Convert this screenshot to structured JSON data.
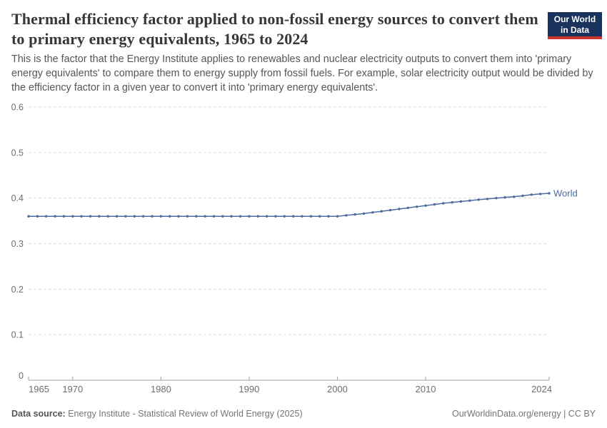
{
  "header": {
    "title": "Thermal efficiency factor applied to non-fossil energy sources to convert them to primary energy equivalents, 1965 to 2024",
    "subtitle": "This is the factor that the Energy Institute applies to renewables and nuclear electricity outputs to convert them into 'primary energy equivalents' to compare them to energy supply from fossil fuels. For example, solar electricity output would be divided by the efficiency factor in a given year to convert it into 'primary energy equivalents'.",
    "logo": {
      "line1": "Our World",
      "line2": "in Data"
    }
  },
  "chart_data": {
    "type": "line",
    "title": "Thermal efficiency factor applied to non-fossil energy sources to convert them to primary energy equivalents",
    "xlabel": "",
    "ylabel": "",
    "x_range": [
      1965,
      2024
    ],
    "y_range": [
      0,
      0.6
    ],
    "x_ticks": [
      1965,
      1970,
      1980,
      1990,
      2000,
      2010,
      2024
    ],
    "x_tick_labels": [
      "1965",
      "1970",
      "1980",
      "1990",
      "2000",
      "2010",
      "2024"
    ],
    "y_ticks": [
      0,
      0.1,
      0.2,
      0.3,
      0.4,
      0.5,
      0.6
    ],
    "y_tick_labels": [
      "0",
      "0.1",
      "0.2",
      "0.3",
      "0.4",
      "0.5",
      "0.6"
    ],
    "grid": "horizontal-dashed",
    "legend_position": "line-end-label",
    "series": [
      {
        "name": "World",
        "color": "#4C6A9C",
        "x_start": 1965,
        "x_step": 1,
        "values": [
          0.36,
          0.36,
          0.36,
          0.36,
          0.36,
          0.36,
          0.36,
          0.36,
          0.36,
          0.36,
          0.36,
          0.36,
          0.36,
          0.36,
          0.36,
          0.36,
          0.36,
          0.36,
          0.36,
          0.36,
          0.36,
          0.36,
          0.36,
          0.36,
          0.36,
          0.36,
          0.36,
          0.36,
          0.36,
          0.36,
          0.36,
          0.36,
          0.36,
          0.36,
          0.36,
          0.36,
          0.362,
          0.364,
          0.366,
          0.3685,
          0.371,
          0.3735,
          0.376,
          0.3785,
          0.381,
          0.3835,
          0.386,
          0.3885,
          0.3905,
          0.3925,
          0.3945,
          0.3965,
          0.398,
          0.4,
          0.4015,
          0.403,
          0.405,
          0.4075,
          0.409,
          0.4105
        ]
      }
    ],
    "colors": {
      "line": "#4C6A9C",
      "grid": "#DADADA",
      "axis": "#A0A0A0",
      "tick_label": "#6E6E6E",
      "title": "#373737",
      "subtitle": "#565656",
      "footer": "#757575",
      "logo_bg": "#1A335C",
      "logo_accent": "#C8372D"
    }
  },
  "footer": {
    "source_label": "Data source:",
    "source_value": "Energy Institute - Statistical Review of World Energy (2025)",
    "attribution": "OurWorldinData.org/energy | CC BY"
  }
}
